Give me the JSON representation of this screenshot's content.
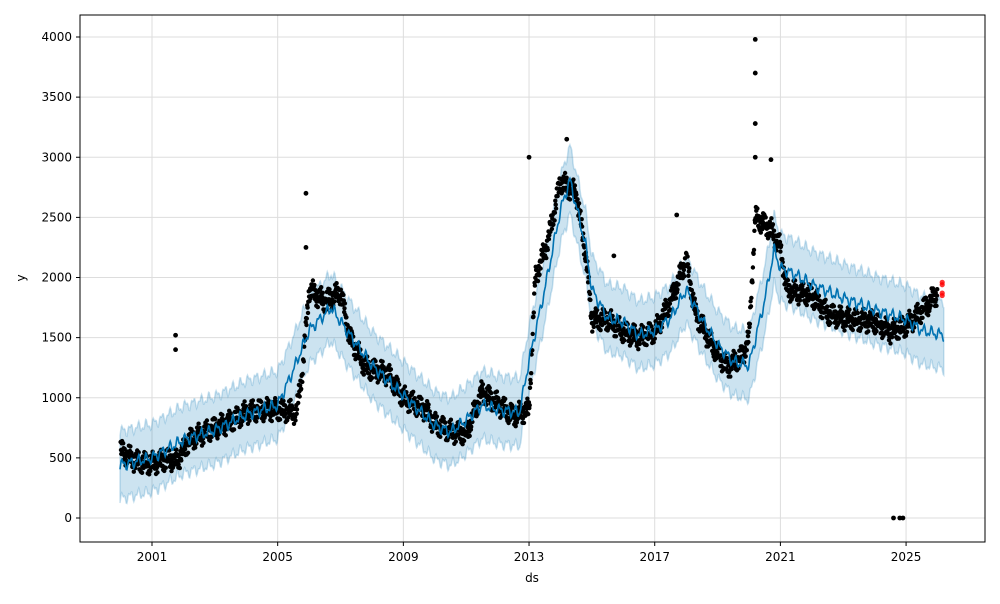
{
  "chart_data": {
    "type": "line",
    "xlabel": "ds",
    "ylabel": "y",
    "xlim": [
      1999.0,
      2026.9
    ],
    "ylim": [
      -200,
      4180
    ],
    "grid": true,
    "x_ticks": [
      "2001",
      "2005",
      "2009",
      "2013",
      "2017",
      "2021",
      "2025"
    ],
    "y_ticks": [
      "0",
      "500",
      "1000",
      "1500",
      "2000",
      "2500",
      "3000",
      "3500",
      "4000"
    ],
    "colors": {
      "forecast": "#0072B2",
      "interval": "#0072B2",
      "observed": "#000000",
      "future": "#ff0000",
      "grid": "#dddddd"
    },
    "forecast": [
      [
        1999.98,
        440
      ],
      [
        2001,
        500
      ],
      [
        2002,
        650
      ],
      [
        2003,
        730
      ],
      [
        2004,
        860
      ],
      [
        2005,
        940
      ],
      [
        2005.5,
        1230
      ],
      [
        2006,
        1560
      ],
      [
        2006.7,
        1750
      ],
      [
        2007.3,
        1520
      ],
      [
        2008,
        1270
      ],
      [
        2009,
        1020
      ],
      [
        2010,
        770
      ],
      [
        2010.5,
        715
      ],
      [
        2011,
        815
      ],
      [
        2011.5,
        940
      ],
      [
        2012,
        900
      ],
      [
        2012.7,
        880
      ],
      [
        2013,
        1310
      ],
      [
        2013.5,
        1900
      ],
      [
        2014,
        2560
      ],
      [
        2014.3,
        2810
      ],
      [
        2014.8,
        2270
      ],
      [
        2015,
        1900
      ],
      [
        2015.5,
        1660
      ],
      [
        2016,
        1630
      ],
      [
        2016.5,
        1520
      ],
      [
        2017,
        1560
      ],
      [
        2017.5,
        1660
      ],
      [
        2018,
        1900
      ],
      [
        2018.5,
        1650
      ],
      [
        2019,
        1440
      ],
      [
        2019.5,
        1300
      ],
      [
        2020,
        1270
      ],
      [
        2020.5,
        1810
      ],
      [
        2020.8,
        2230
      ],
      [
        2021,
        2080
      ],
      [
        2021.5,
        2020
      ],
      [
        2022,
        1940
      ],
      [
        2023,
        1830
      ],
      [
        2024,
        1730
      ],
      [
        2025,
        1650
      ],
      [
        2025.5,
        1560
      ],
      [
        2026.2,
        1520
      ]
    ],
    "interval_halfwidth": 280,
    "observed": [
      [
        2000.0,
        560
      ],
      [
        2000.5,
        470
      ],
      [
        2001,
        450
      ],
      [
        2001.5,
        490
      ],
      [
        2001.8,
        480
      ],
      [
        2002,
        560
      ],
      [
        2002.2,
        650
      ],
      [
        2003,
        750
      ],
      [
        2003.5,
        800
      ],
      [
        2004,
        880
      ],
      [
        2004.5,
        900
      ],
      [
        2005,
        900
      ],
      [
        2005.6,
        880
      ],
      [
        2005.8,
        1250
      ],
      [
        2006,
        1900
      ],
      [
        2006.5,
        1800
      ],
      [
        2007,
        1880
      ],
      [
        2007.3,
        1500
      ],
      [
        2007.8,
        1250
      ],
      [
        2008.5,
        1200
      ],
      [
        2009,
        1000
      ],
      [
        2009.7,
        900
      ],
      [
        2010,
        780
      ],
      [
        2010.5,
        720
      ],
      [
        2011,
        700
      ],
      [
        2011.5,
        1050
      ],
      [
        2012,
        950
      ],
      [
        2012.5,
        850
      ],
      [
        2013,
        900
      ],
      [
        2013.2,
        2000
      ],
      [
        2013.6,
        2300
      ],
      [
        2014,
        2800
      ],
      [
        2014.5,
        2700
      ],
      [
        2014.8,
        2200
      ],
      [
        2015,
        1650
      ],
      [
        2015.5,
        1650
      ],
      [
        2016,
        1550
      ],
      [
        2016.5,
        1500
      ],
      [
        2017,
        1550
      ],
      [
        2017.5,
        1800
      ],
      [
        2018,
        2150
      ],
      [
        2018.3,
        1700
      ],
      [
        2018.8,
        1450
      ],
      [
        2019.3,
        1250
      ],
      [
        2019.8,
        1350
      ],
      [
        2020,
        1500
      ],
      [
        2020.2,
        2500
      ],
      [
        2020.7,
        2400
      ],
      [
        2021,
        2250
      ],
      [
        2021.2,
        1900
      ],
      [
        2022,
        1850
      ],
      [
        2022.5,
        1700
      ],
      [
        2023,
        1660
      ],
      [
        2024,
        1630
      ],
      [
        2024.5,
        1550
      ],
      [
        2025,
        1600
      ],
      [
        2025.5,
        1720
      ],
      [
        2026,
        1870
      ]
    ],
    "observed_outliers": [
      [
        2001.75,
        1520
      ],
      [
        2001.75,
        1400
      ],
      [
        2005.9,
        2700
      ],
      [
        2005.9,
        2250
      ],
      [
        2013.0,
        3000
      ],
      [
        2014.2,
        3150
      ],
      [
        2015.7,
        2180
      ],
      [
        2017.7,
        2520
      ],
      [
        2020.2,
        3980
      ],
      [
        2020.2,
        3700
      ],
      [
        2020.2,
        3280
      ],
      [
        2020.2,
        3000
      ],
      [
        2020.7,
        2980
      ],
      [
        2024.6,
        0
      ],
      [
        2024.8,
        0
      ],
      [
        2024.9,
        0
      ]
    ],
    "future_points": [
      [
        2026.15,
        1850
      ],
      [
        2026.15,
        1870
      ],
      [
        2026.15,
        1940
      ],
      [
        2026.15,
        1960
      ]
    ]
  }
}
